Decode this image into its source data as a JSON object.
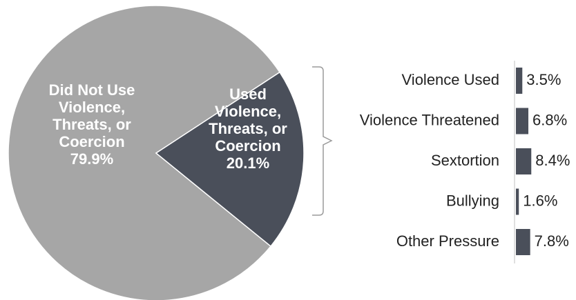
{
  "chart_data": [
    {
      "type": "pie",
      "slices": [
        {
          "label_lines": [
            "Did Not Use",
            "Violence,",
            "Threats, or",
            "Coercion"
          ],
          "value_label": "79.9%",
          "value": 79.9,
          "color": "#a6a6a6"
        },
        {
          "label_lines": [
            "Used",
            "Violence,",
            "Threats, or",
            "Coercion"
          ],
          "value_label": "20.1%",
          "value": 20.1,
          "color": "#4a4f5a"
        }
      ]
    },
    {
      "type": "bar",
      "orientation": "horizontal",
      "categories": [
        "Violence Used",
        "Violence Threatened",
        "Sextortion",
        "Bullying",
        "Other Pressure"
      ],
      "values": [
        3.5,
        6.8,
        8.4,
        1.6,
        7.8
      ],
      "value_labels": [
        "3.5%",
        "6.8%",
        "8.4%",
        "1.6%",
        "7.8%"
      ],
      "color": "#4a4f5a",
      "grid": false
    }
  ]
}
